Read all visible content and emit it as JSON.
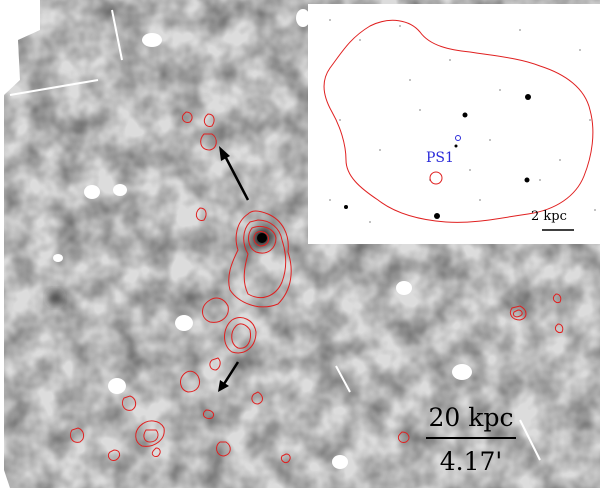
{
  "main_panel": {
    "scale_bar_distance": "20 kpc",
    "scale_bar_angle": "4.17'"
  },
  "inset_panel": {
    "source_label": "PS1",
    "scale_bar_distance": "2 kpc"
  },
  "colors": {
    "contour": "#e02020",
    "arrow": "#000000",
    "source_label": "#2b2bd9",
    "background_light": "#f2f2f2",
    "background_dark": "#8a8a8a"
  }
}
